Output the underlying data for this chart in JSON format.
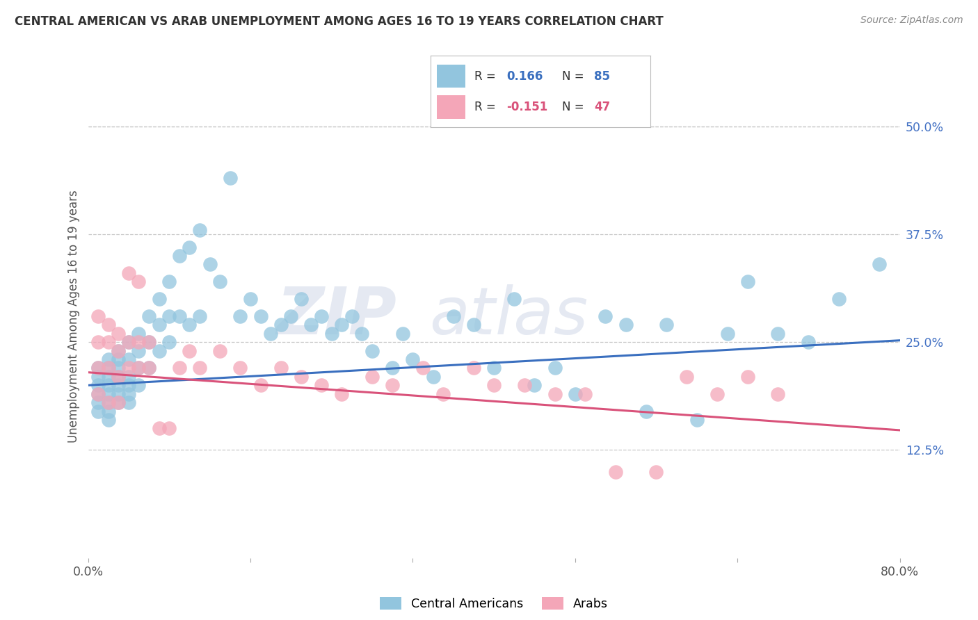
{
  "title": "CENTRAL AMERICAN VS ARAB UNEMPLOYMENT AMONG AGES 16 TO 19 YEARS CORRELATION CHART",
  "source": "Source: ZipAtlas.com",
  "ylabel": "Unemployment Among Ages 16 to 19 years",
  "ytick_labels": [
    "50.0%",
    "37.5%",
    "25.0%",
    "12.5%"
  ],
  "ytick_vals": [
    0.5,
    0.375,
    0.25,
    0.125
  ],
  "xlim": [
    0.0,
    0.8
  ],
  "ylim": [
    0.0,
    0.56
  ],
  "blue_R": "0.166",
  "blue_N": "85",
  "pink_R": "-0.151",
  "pink_N": "47",
  "blue_color": "#92c5de",
  "pink_color": "#f4a6b8",
  "blue_line_color": "#3a6fbf",
  "pink_line_color": "#d9527a",
  "legend_blue_label": "Central Americans",
  "legend_pink_label": "Arabs",
  "background_color": "#ffffff",
  "grid_color": "#c8c8c8",
  "title_color": "#333333",
  "blue_line_start_y": 0.2,
  "blue_line_end_y": 0.252,
  "pink_line_start_y": 0.215,
  "pink_line_end_y": 0.148,
  "blue_x": [
    0.01,
    0.01,
    0.01,
    0.01,
    0.01,
    0.01,
    0.02,
    0.02,
    0.02,
    0.02,
    0.02,
    0.02,
    0.02,
    0.02,
    0.03,
    0.03,
    0.03,
    0.03,
    0.03,
    0.03,
    0.03,
    0.04,
    0.04,
    0.04,
    0.04,
    0.04,
    0.04,
    0.05,
    0.05,
    0.05,
    0.05,
    0.06,
    0.06,
    0.06,
    0.07,
    0.07,
    0.07,
    0.08,
    0.08,
    0.08,
    0.09,
    0.09,
    0.1,
    0.1,
    0.11,
    0.11,
    0.12,
    0.13,
    0.14,
    0.15,
    0.16,
    0.17,
    0.18,
    0.19,
    0.2,
    0.21,
    0.22,
    0.23,
    0.24,
    0.25,
    0.26,
    0.27,
    0.28,
    0.3,
    0.31,
    0.32,
    0.34,
    0.36,
    0.38,
    0.4,
    0.42,
    0.44,
    0.46,
    0.48,
    0.51,
    0.53,
    0.55,
    0.57,
    0.6,
    0.63,
    0.65,
    0.68,
    0.71,
    0.74,
    0.78
  ],
  "blue_y": [
    0.22,
    0.21,
    0.2,
    0.19,
    0.18,
    0.17,
    0.23,
    0.22,
    0.21,
    0.2,
    0.19,
    0.18,
    0.17,
    0.16,
    0.24,
    0.23,
    0.22,
    0.21,
    0.2,
    0.19,
    0.18,
    0.25,
    0.23,
    0.21,
    0.2,
    0.19,
    0.18,
    0.26,
    0.24,
    0.22,
    0.2,
    0.28,
    0.25,
    0.22,
    0.3,
    0.27,
    0.24,
    0.32,
    0.28,
    0.25,
    0.35,
    0.28,
    0.36,
    0.27,
    0.38,
    0.28,
    0.34,
    0.32,
    0.44,
    0.28,
    0.3,
    0.28,
    0.26,
    0.27,
    0.28,
    0.3,
    0.27,
    0.28,
    0.26,
    0.27,
    0.28,
    0.26,
    0.24,
    0.22,
    0.26,
    0.23,
    0.21,
    0.28,
    0.27,
    0.22,
    0.3,
    0.2,
    0.22,
    0.19,
    0.28,
    0.27,
    0.17,
    0.27,
    0.16,
    0.26,
    0.32,
    0.26,
    0.25,
    0.3,
    0.34
  ],
  "pink_x": [
    0.01,
    0.01,
    0.01,
    0.01,
    0.02,
    0.02,
    0.02,
    0.02,
    0.03,
    0.03,
    0.03,
    0.03,
    0.04,
    0.04,
    0.04,
    0.05,
    0.05,
    0.05,
    0.06,
    0.06,
    0.07,
    0.08,
    0.09,
    0.1,
    0.11,
    0.13,
    0.15,
    0.17,
    0.19,
    0.21,
    0.23,
    0.25,
    0.28,
    0.3,
    0.33,
    0.35,
    0.38,
    0.4,
    0.43,
    0.46,
    0.49,
    0.52,
    0.56,
    0.59,
    0.62,
    0.65,
    0.68
  ],
  "pink_y": [
    0.28,
    0.25,
    0.22,
    0.19,
    0.27,
    0.25,
    0.22,
    0.18,
    0.26,
    0.24,
    0.21,
    0.18,
    0.33,
    0.25,
    0.22,
    0.32,
    0.25,
    0.22,
    0.25,
    0.22,
    0.15,
    0.15,
    0.22,
    0.24,
    0.22,
    0.24,
    0.22,
    0.2,
    0.22,
    0.21,
    0.2,
    0.19,
    0.21,
    0.2,
    0.22,
    0.19,
    0.22,
    0.2,
    0.2,
    0.19,
    0.19,
    0.1,
    0.1,
    0.21,
    0.19,
    0.21,
    0.19
  ]
}
